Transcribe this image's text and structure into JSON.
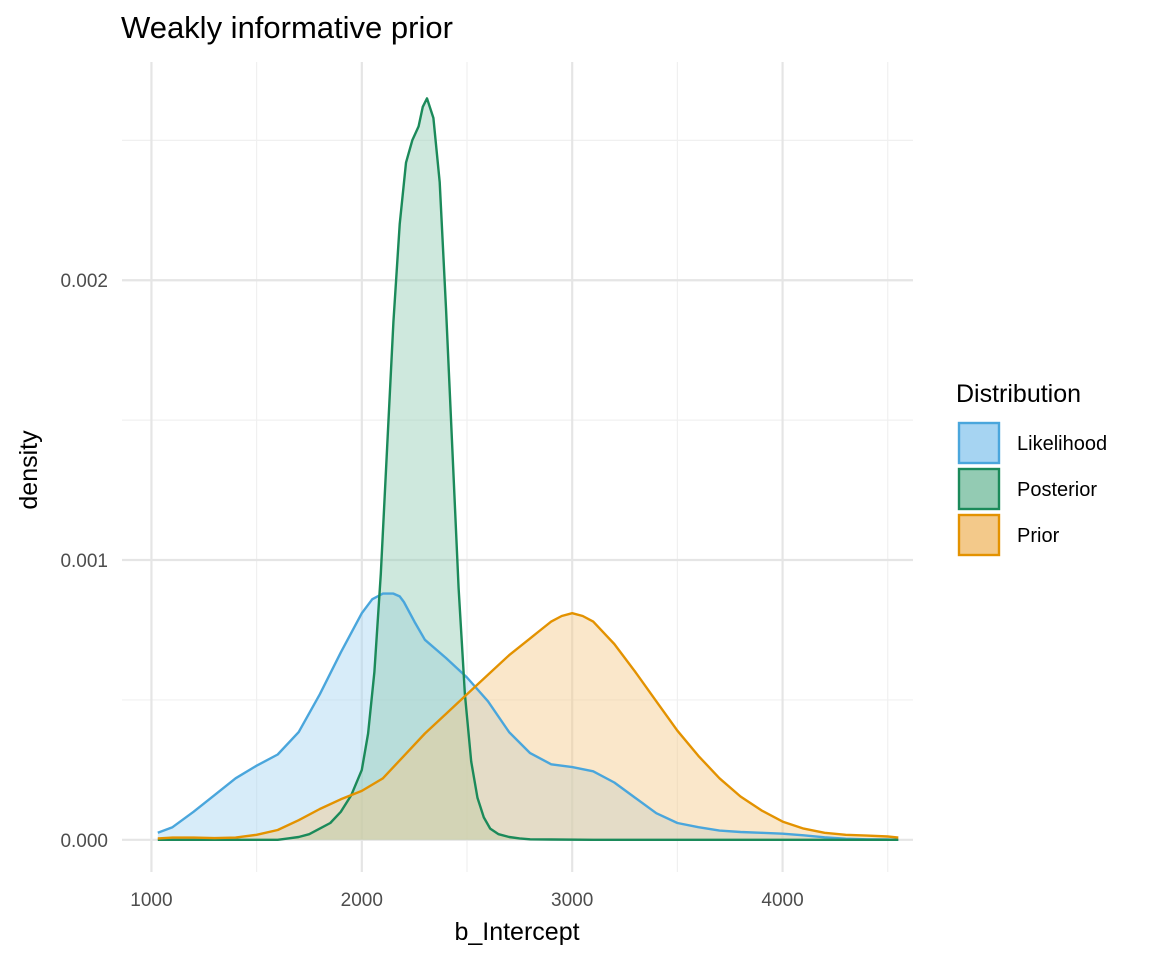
{
  "chart_data": {
    "type": "area",
    "title": "Weakly informative prior",
    "xlabel": "b_Intercept",
    "ylabel": "density",
    "xlim": [
      860,
      4620
    ],
    "ylim": [
      -0.000115,
      0.00278
    ],
    "x_ticks": [
      1000,
      2000,
      3000,
      4000
    ],
    "x_tick_labels": [
      "1000",
      "2000",
      "3000",
      "4000"
    ],
    "y_ticks": [
      0.0,
      0.001,
      0.002
    ],
    "y_tick_labels": [
      "0.000",
      "0.001",
      "0.002"
    ],
    "x_minor_ticks": [
      1500,
      2500,
      3500,
      4500
    ],
    "y_minor_ticks": [
      0.0005,
      0.0015,
      0.0025
    ],
    "grid": true,
    "legend": {
      "title": "Distribution",
      "position": "right",
      "entries": [
        "Likelihood",
        "Posterior",
        "Prior"
      ]
    },
    "series": [
      {
        "name": "Likelihood",
        "color": "#4aa6dc",
        "fill": "#a6d4f2",
        "x": [
          1030,
          1100,
          1200,
          1300,
          1400,
          1500,
          1600,
          1700,
          1800,
          1900,
          2000,
          2050,
          2100,
          2150,
          2180,
          2200,
          2250,
          2300,
          2400,
          2500,
          2600,
          2700,
          2800,
          2900,
          3000,
          3100,
          3200,
          3300,
          3400,
          3500,
          3600,
          3700,
          3800,
          3900,
          4000,
          4100,
          4200,
          4300,
          4400,
          4500,
          4550
        ],
        "y": [
          2.5e-05,
          4.5e-05,
          0.0001,
          0.00016,
          0.00022,
          0.000265,
          0.000305,
          0.000385,
          0.00052,
          0.00067,
          0.00081,
          0.00086,
          0.00088,
          0.00088,
          0.00087,
          0.00085,
          0.00078,
          0.000715,
          0.00065,
          0.00058,
          0.000495,
          0.000385,
          0.00031,
          0.00027,
          0.00026,
          0.000245,
          0.000205,
          0.00015,
          9.5e-05,
          6e-05,
          4.5e-05,
          3.3e-05,
          2.8e-05,
          2.5e-05,
          2.2e-05,
          1.6e-05,
          9e-06,
          4e-06,
          2e-06,
          1e-06,
          5e-07
        ]
      },
      {
        "name": "Posterior",
        "color": "#1b8a5a",
        "fill": "#93cbb3",
        "x": [
          1030,
          1600,
          1650,
          1700,
          1750,
          1800,
          1850,
          1900,
          1950,
          2000,
          2030,
          2060,
          2090,
          2120,
          2150,
          2180,
          2210,
          2240,
          2270,
          2290,
          2310,
          2340,
          2370,
          2400,
          2430,
          2460,
          2490,
          2520,
          2550,
          2580,
          2610,
          2650,
          2700,
          2750,
          2800,
          2900,
          3100,
          4550
        ],
        "y": [
          0.0,
          0.0,
          5e-06,
          1e-05,
          2e-05,
          4e-05,
          6e-05,
          0.0001,
          0.00016,
          0.00025,
          0.00038,
          0.0006,
          0.00095,
          0.0014,
          0.00185,
          0.0022,
          0.00242,
          0.0025,
          0.00255,
          0.00262,
          0.00265,
          0.00258,
          0.00235,
          0.0019,
          0.0014,
          0.0009,
          0.00052,
          0.00028,
          0.00015,
          8e-05,
          4e-05,
          2e-05,
          1e-05,
          5e-06,
          2e-06,
          1e-06,
          0.0,
          0.0
        ]
      },
      {
        "name": "Prior",
        "color": "#e39200",
        "fill": "#f3c98a",
        "x": [
          1030,
          1100,
          1200,
          1300,
          1400,
          1500,
          1600,
          1700,
          1800,
          1900,
          2000,
          2100,
          2200,
          2300,
          2400,
          2500,
          2600,
          2700,
          2800,
          2850,
          2900,
          2950,
          3000,
          3050,
          3100,
          3200,
          3300,
          3400,
          3500,
          3600,
          3700,
          3800,
          3900,
          4000,
          4100,
          4200,
          4300,
          4400,
          4500,
          4550
        ],
        "y": [
          5e-06,
          8e-06,
          8e-06,
          6e-06,
          8e-06,
          1.8e-05,
          3.5e-05,
          7e-05,
          0.00011,
          0.000145,
          0.000175,
          0.00022,
          0.0003,
          0.00038,
          0.00045,
          0.00052,
          0.00059,
          0.00066,
          0.00072,
          0.00075,
          0.00078,
          0.0008,
          0.00081,
          0.0008,
          0.00078,
          0.0007,
          0.0006,
          0.000495,
          0.00039,
          0.0003,
          0.00022,
          0.000155,
          0.000105,
          6.5e-05,
          4e-05,
          2.5e-05,
          1.8e-05,
          1.5e-05,
          1.2e-05,
          8e-06
        ]
      }
    ]
  }
}
